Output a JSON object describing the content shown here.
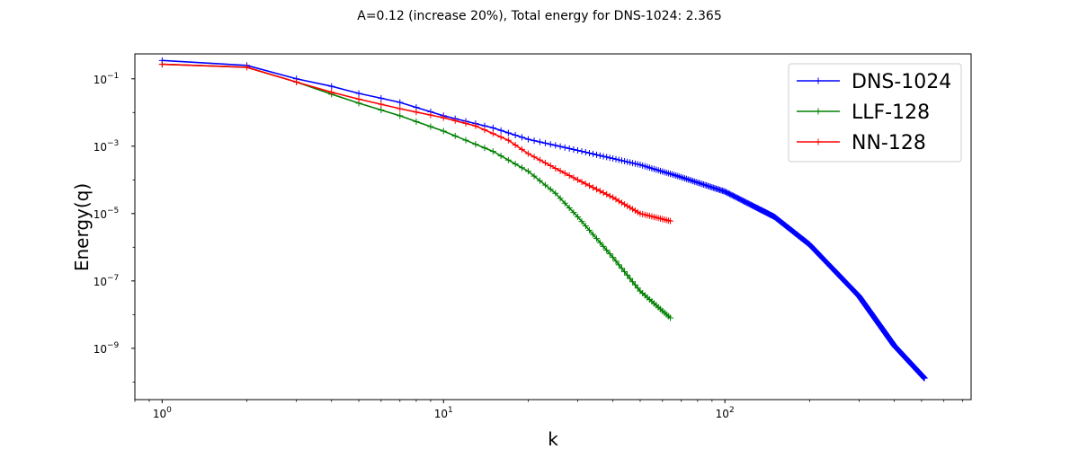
{
  "chart_data": {
    "type": "line",
    "title": "A=0.12 (increase 20%), Total energy for DNS-1024: 2.365",
    "xlabel": "k",
    "ylabel": "Energy(q)",
    "xscale": "log",
    "yscale": "log",
    "xlim": [
      0.8,
      750
    ],
    "ylim": [
      3e-11,
      0.55
    ],
    "grid": false,
    "legend_position": "upper-right",
    "x_ticks": [
      {
        "value": 1,
        "base": "10",
        "exp": "0"
      },
      {
        "value": 10,
        "base": "10",
        "exp": "1"
      },
      {
        "value": 100,
        "base": "10",
        "exp": "2"
      }
    ],
    "y_ticks": [
      {
        "value": 0.1,
        "base": "10",
        "exp": "−1"
      },
      {
        "value": 0.001,
        "base": "10",
        "exp": "−3"
      },
      {
        "value": 1e-05,
        "base": "10",
        "exp": "−5"
      },
      {
        "value": 1e-07,
        "base": "10",
        "exp": "−7"
      },
      {
        "value": 1e-09,
        "base": "10",
        "exp": "−9"
      }
    ],
    "series": [
      {
        "name": "DNS-1024",
        "color": "#0000ff",
        "kmax": 512,
        "anchors": [
          [
            1,
            0.35
          ],
          [
            2,
            0.25
          ],
          [
            3,
            0.1
          ],
          [
            4,
            0.06
          ],
          [
            5,
            0.037
          ],
          [
            7,
            0.02
          ],
          [
            10,
            0.008
          ],
          [
            15,
            0.0035
          ],
          [
            20,
            0.0016
          ],
          [
            30,
            0.00075
          ],
          [
            50,
            0.00028
          ],
          [
            70,
            0.00012
          ],
          [
            100,
            4.5e-05
          ],
          [
            150,
            8e-06
          ],
          [
            200,
            1.2e-06
          ],
          [
            300,
            3.5e-08
          ],
          [
            400,
            1.2e-09
          ],
          [
            512,
            1.3e-10
          ]
        ]
      },
      {
        "name": "LLF-128",
        "color": "#008000",
        "kmax": 64,
        "anchors": [
          [
            1,
            0.27
          ],
          [
            2,
            0.22
          ],
          [
            3,
            0.08
          ],
          [
            4,
            0.035
          ],
          [
            5,
            0.019
          ],
          [
            7,
            0.008
          ],
          [
            10,
            0.0028
          ],
          [
            15,
            0.0007
          ],
          [
            20,
            0.00018
          ],
          [
            25,
            4e-05
          ],
          [
            30,
            8e-06
          ],
          [
            40,
            5e-07
          ],
          [
            50,
            5e-08
          ],
          [
            64,
            8e-09
          ]
        ]
      },
      {
        "name": "NN-128",
        "color": "#ff0000",
        "kmax": 64,
        "anchors": [
          [
            1,
            0.27
          ],
          [
            2,
            0.22
          ],
          [
            3,
            0.08
          ],
          [
            4,
            0.04
          ],
          [
            5,
            0.025
          ],
          [
            7,
            0.013
          ],
          [
            10,
            0.007
          ],
          [
            13,
            0.004
          ],
          [
            17,
            0.0015
          ],
          [
            20,
            0.0006
          ],
          [
            25,
            0.00022
          ],
          [
            30,
            0.0001
          ],
          [
            40,
            3e-05
          ],
          [
            50,
            1e-05
          ],
          [
            64,
            6e-06
          ]
        ]
      }
    ]
  }
}
